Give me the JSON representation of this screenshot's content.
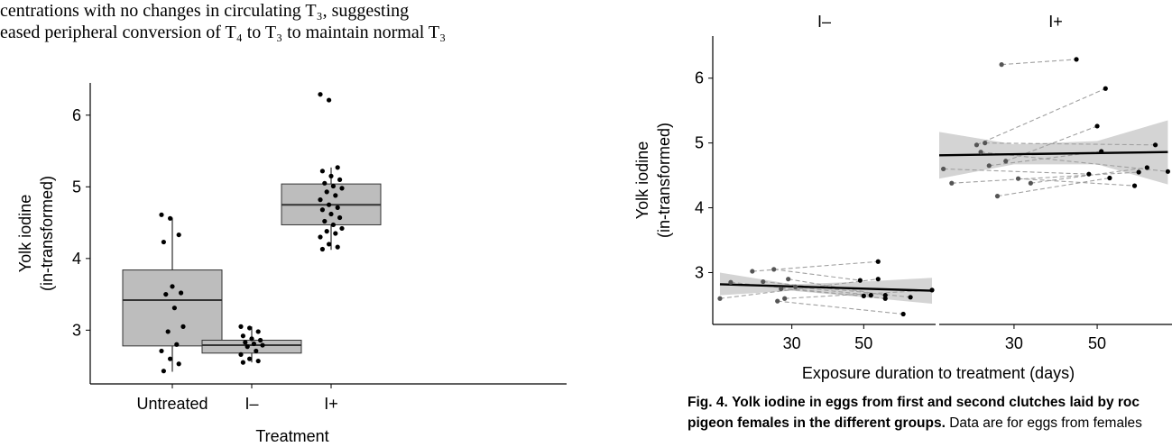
{
  "body_text": {
    "line1": "centrations with no changes in circulating T₃, suggesting",
    "line2": "eased peripheral conversion of T₄ to T₃ to maintain normal T₃"
  },
  "caption": {
    "label": "Fig. 4.",
    "bold_text": "Yolk iodine in eggs from first and second clutches laid by roc",
    "bold_text_2": "pigeon females in the different groups.",
    "text": "Data are for eggs from females"
  },
  "chart_data": [
    {
      "type": "box",
      "title": "",
      "xlabel": "Treatment",
      "ylabel": "Yolk iodine",
      "ylabel2": "(in-transformed)",
      "categories": [
        "Untreated",
        "I–",
        "I+"
      ],
      "ylim": [
        2.25,
        6.45
      ],
      "yticks": [
        "3",
        "4",
        "5",
        "6"
      ],
      "box_color": "#bdbdbd",
      "boxes": [
        {
          "q1": 2.78,
          "median": 3.42,
          "q3": 3.84,
          "lower": 2.42,
          "upper": 4.57
        },
        {
          "q1": 2.68,
          "median": 2.79,
          "q3": 2.86,
          "lower": 2.55,
          "upper": 3.05
        },
        {
          "q1": 4.47,
          "median": 4.75,
          "q3": 5.04,
          "lower": 4.12,
          "upper": 5.27
        }
      ],
      "points": [
        [
          4.61,
          4.56,
          4.33,
          4.23,
          3.61,
          3.52,
          3.5,
          3.31,
          3.05,
          2.98,
          2.8,
          2.71,
          2.6,
          2.53,
          2.43
        ],
        [
          3.05,
          3.03,
          2.98,
          2.92,
          2.88,
          2.86,
          2.83,
          2.81,
          2.79,
          2.77,
          2.71,
          2.66,
          2.6,
          2.57,
          2.55
        ],
        [
          6.29,
          6.21,
          5.27,
          5.22,
          5.15,
          5.1,
          5.05,
          5.01,
          4.98,
          4.93,
          4.88,
          4.82,
          4.75,
          4.71,
          4.68,
          4.62,
          4.57,
          4.52,
          4.47,
          4.42,
          4.38,
          4.35,
          4.3,
          4.2,
          4.16,
          4.13
        ]
      ]
    },
    {
      "type": "scatter",
      "title": "",
      "xlabel": "Exposure duration to treatment (days)",
      "ylabel": "Yolk iodine",
      "ylabel2": "(in-transformed)",
      "ylim": [
        2.2,
        6.65
      ],
      "yticks": [
        "3",
        "4",
        "5",
        "6"
      ],
      "xticks": [
        "30",
        "50"
      ],
      "panels": [
        {
          "label": "I–",
          "xlim": [
            8,
            70
          ],
          "trend": {
            "x": [
              10,
              69
            ],
            "y": [
              2.82,
              2.72
            ]
          },
          "band": {
            "x": [
              10,
              30,
              50,
              69
            ],
            "upper": [
              3.0,
              2.82,
              2.86,
              2.92
            ],
            "lower": [
              2.65,
              2.72,
              2.62,
              2.52
            ]
          },
          "pairs": [
            [
              [
                10,
                2.6
              ],
              [
                54,
                2.9
              ]
            ],
            [
              [
                13,
                2.85
              ],
              [
                56,
                2.6
              ]
            ],
            [
              [
                19,
                3.02
              ],
              [
                54,
                3.17
              ]
            ],
            [
              [
                22,
                2.86
              ],
              [
                63,
                2.62
              ]
            ],
            [
              [
                25,
                3.05
              ],
              [
                49,
                2.88
              ]
            ],
            [
              [
                26,
                2.56
              ],
              [
                61,
                2.36
              ]
            ],
            [
              [
                27,
                2.75
              ],
              [
                50,
                2.64
              ]
            ],
            [
              [
                28,
                2.6
              ],
              [
                69,
                2.73
              ]
            ],
            [
              [
                29,
                2.9
              ],
              [
                56,
                2.65
              ]
            ],
            [
              [
                31,
                2.78
              ],
              [
                52,
                2.65
              ]
            ]
          ]
        },
        {
          "label": "I+",
          "xlim": [
            12,
            68
          ],
          "trend": {
            "x": [
              12,
              67
            ],
            "y": [
              4.81,
              4.86
            ]
          },
          "band": {
            "x": [
              12,
              30,
              50,
              67
            ],
            "upper": [
              5.17,
              4.98,
              5.03,
              5.35
            ],
            "lower": [
              4.45,
              4.67,
              4.67,
              4.36
            ]
          },
          "pairs": [
            [
              [
                13,
                4.6
              ],
              [
                48,
                4.52
              ]
            ],
            [
              [
                15,
                4.38
              ],
              [
                60,
                4.55
              ]
            ],
            [
              [
                21,
                4.97
              ],
              [
                52,
                5.84
              ]
            ],
            [
              [
                22,
                4.86
              ],
              [
                67,
                4.56
              ]
            ],
            [
              [
                24,
                4.65
              ],
              [
                51,
                4.87
              ]
            ],
            [
              [
                26,
                4.18
              ],
              [
                53,
                4.46
              ]
            ],
            [
              [
                27,
                6.21
              ],
              [
                45,
                6.29
              ]
            ],
            [
              [
                28,
                4.72
              ],
              [
                50,
                5.26
              ]
            ],
            [
              [
                31,
                4.45
              ],
              [
                59,
                4.34
              ]
            ],
            [
              [
                34,
                4.38
              ],
              [
                62,
                4.62
              ]
            ],
            [
              [
                23,
                5.0
              ],
              [
                64,
                4.97
              ]
            ]
          ]
        }
      ]
    }
  ]
}
